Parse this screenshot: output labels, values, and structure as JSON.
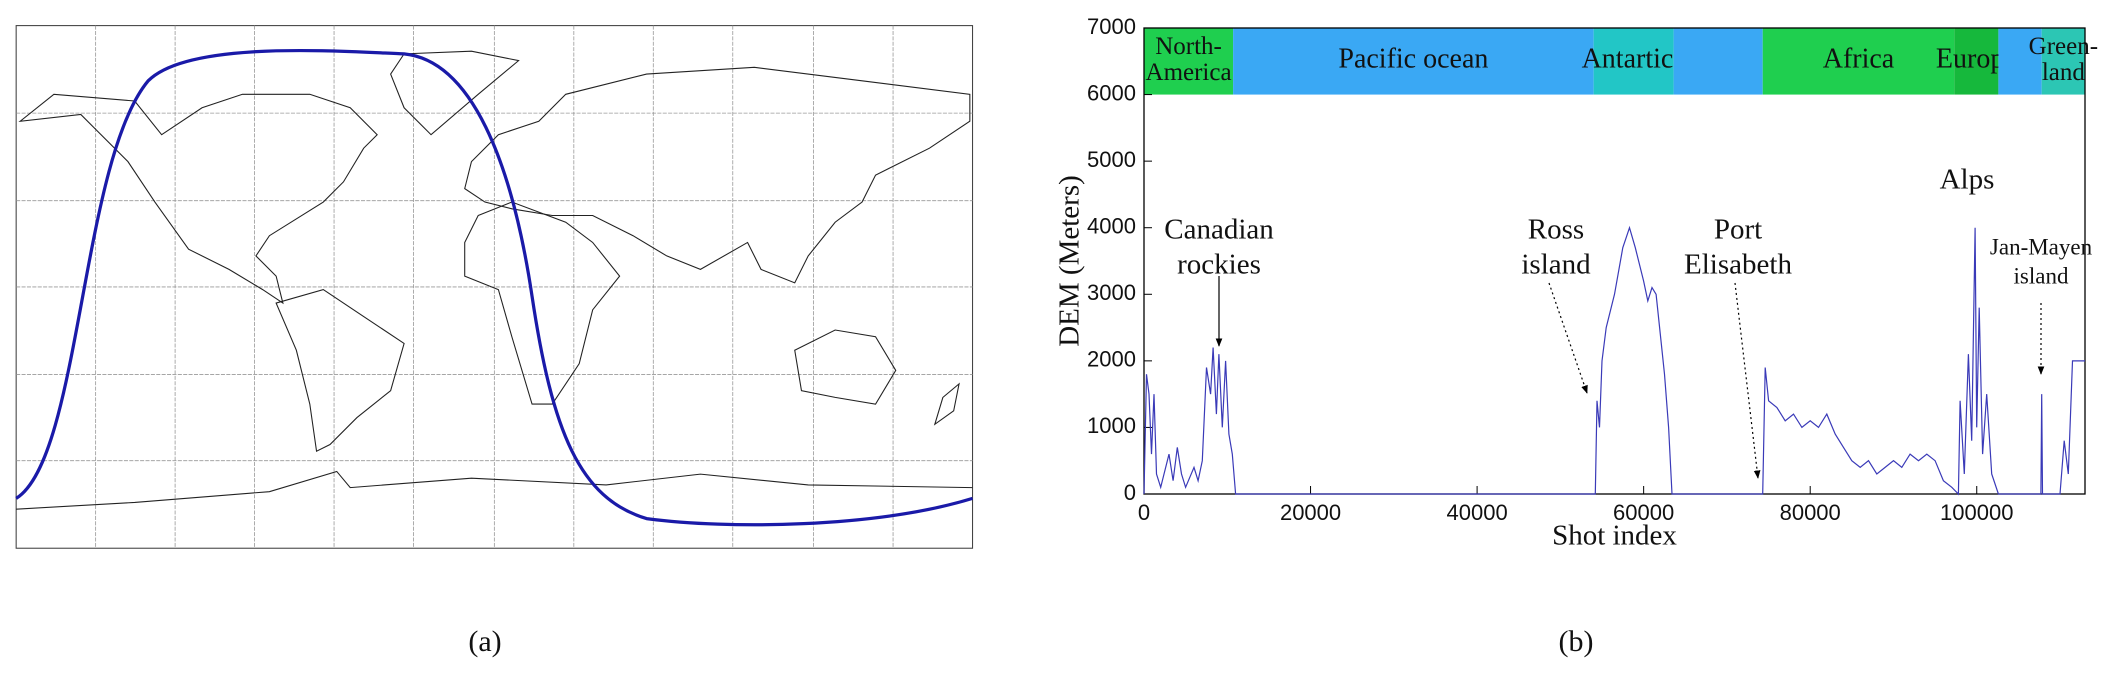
{
  "chart_data": [
    {
      "type": "map",
      "label": "(a)"
    },
    {
      "type": "line",
      "label": "(b)",
      "xlabel": "Shot index",
      "ylabel": "DEM (Meters)",
      "xlim": [
        0,
        113000
      ],
      "ylim": [
        0,
        7000
      ],
      "xticks": [
        0,
        20000,
        40000,
        60000,
        80000,
        100000
      ],
      "yticks": [
        0,
        1000,
        2000,
        3000,
        4000,
        5000,
        6000,
        7000
      ],
      "band_y": [
        6000,
        7000
      ],
      "regions": [
        {
          "label": [
            "North-",
            "America"
          ],
          "start": 0,
          "end": 10700,
          "color": "#1fcf4f"
        },
        {
          "label": [
            "Pacific ocean"
          ],
          "start": 10700,
          "end": 54000,
          "color": "#3aa8f4"
        },
        {
          "label": [
            "Antartica"
          ],
          "start": 54000,
          "end": 63600,
          "color": "#22c6c6"
        },
        {
          "label": null,
          "start": 63600,
          "end": 74300,
          "color": "#3aa8f4"
        },
        {
          "label": [
            "Africa"
          ],
          "start": 74300,
          "end": 97300,
          "color": "#1fcf4f"
        },
        {
          "label": [
            "Europa"
          ],
          "start": 97300,
          "end": 102600,
          "color": "#16b83c"
        },
        {
          "label": null,
          "start": 102600,
          "end": 107800,
          "color": "#3aa8f4"
        },
        {
          "label": [
            "Green-",
            "land"
          ],
          "start": 107800,
          "end": 113000,
          "color": "#2cc6b4"
        }
      ],
      "annotations": [
        {
          "text": [
            "Canadian",
            "rockies"
          ]
        },
        {
          "text": [
            "Ross",
            "island"
          ]
        },
        {
          "text": [
            "Port",
            "Elisabeth"
          ]
        },
        {
          "text": [
            "Alps"
          ]
        },
        {
          "text": [
            "Jan-Mayen",
            "island"
          ]
        }
      ],
      "series": [
        {
          "color": "#3a3ab8",
          "x": [
            0,
            300,
            600,
            900,
            1200,
            1500,
            2000,
            3000,
            3500,
            4000,
            4500,
            5000,
            6000,
            6500,
            7000,
            7500,
            8000,
            8300,
            8700,
            9000,
            9400,
            9800,
            10200,
            10600,
            11000,
            20000,
            40000,
            54200,
            54400,
            54700,
            55000,
            55500,
            56500,
            57500,
            58300,
            59000,
            60000,
            60500,
            61000,
            61500,
            62000,
            62500,
            63000,
            63400,
            74300,
            74600,
            75000,
            76000,
            77000,
            78000,
            79000,
            80000,
            81000,
            82000,
            83000,
            84000,
            85000,
            86000,
            87000,
            88000,
            89000,
            90000,
            91000,
            92000,
            93000,
            94000,
            95000,
            96000,
            97000,
            97800,
            98000,
            98500,
            99000,
            99400,
            99800,
            100000,
            100300,
            100700,
            101200,
            101800,
            102600,
            107700,
            107800,
            107900,
            110000,
            110500,
            111000,
            111500,
            113000
          ],
          "values": [
            0,
            1800,
            1500,
            600,
            1500,
            300,
            100,
            600,
            200,
            700,
            300,
            100,
            400,
            200,
            500,
            1900,
            1500,
            2200,
            1200,
            2100,
            1000,
            2000,
            900,
            600,
            0,
            0,
            0,
            0,
            1400,
            1000,
            2000,
            2500,
            3000,
            3700,
            4000,
            3700,
            3200,
            2900,
            3100,
            3000,
            2400,
            1800,
            1000,
            0,
            0,
            1900,
            1400,
            1300,
            1100,
            1200,
            1000,
            1100,
            1000,
            1200,
            900,
            700,
            500,
            400,
            500,
            300,
            400,
            500,
            400,
            600,
            500,
            600,
            500,
            200,
            100,
            0,
            1400,
            300,
            2100,
            800,
            4000,
            1000,
            2800,
            600,
            1500,
            300,
            0,
            0,
            1500,
            0,
            0,
            800,
            300,
            2000,
            2000
          ]
        }
      ]
    }
  ]
}
